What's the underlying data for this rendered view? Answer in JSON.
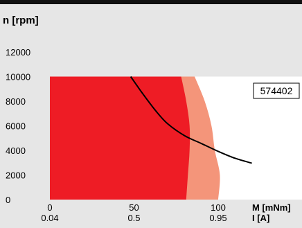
{
  "chart_data": {
    "type": "area",
    "title": "",
    "ylabel": "n [rpm]",
    "xlabel": "M [mNm]",
    "xlabel2": "I [A]",
    "ylim": [
      0,
      12000
    ],
    "yticks": [
      0,
      2000,
      4000,
      6000,
      8000,
      10000,
      12000
    ],
    "xlim": [
      0,
      100
    ],
    "xticks": [
      {
        "m": 0,
        "label": "0",
        "label2": "0.04"
      },
      {
        "m": 50,
        "label": "50",
        "label2": "0.5"
      },
      {
        "m": 100,
        "label": "100",
        "label2": "0.95"
      }
    ],
    "limit_speed": 10000,
    "continuous_region": {
      "color": "#ee1c25",
      "boundary": [
        [
          81,
          0
        ],
        [
          82,
          2000
        ],
        [
          83,
          4000
        ],
        [
          83,
          6000
        ],
        [
          81,
          8000
        ],
        [
          78,
          10000
        ]
      ]
    },
    "intermittent_region": {
      "color": "#f4957a",
      "boundary": [
        [
          100,
          0
        ],
        [
          101,
          2000
        ],
        [
          98,
          4000
        ],
        [
          96,
          6000
        ],
        [
          92,
          8000
        ],
        [
          86,
          10000
        ]
      ]
    },
    "characteristic_curve": {
      "color": "#000000",
      "points": [
        [
          48,
          10000
        ],
        [
          55,
          8640
        ],
        [
          63,
          7200
        ],
        [
          70,
          6160
        ],
        [
          80,
          5200
        ],
        [
          90,
          4560
        ],
        [
          100,
          3920
        ],
        [
          110,
          3360
        ],
        [
          120,
          2960
        ]
      ]
    },
    "annotation": {
      "text": "574402"
    },
    "colors": {
      "background": "#e6e6e6",
      "header": "#111111",
      "plot": "#ffffff"
    }
  }
}
